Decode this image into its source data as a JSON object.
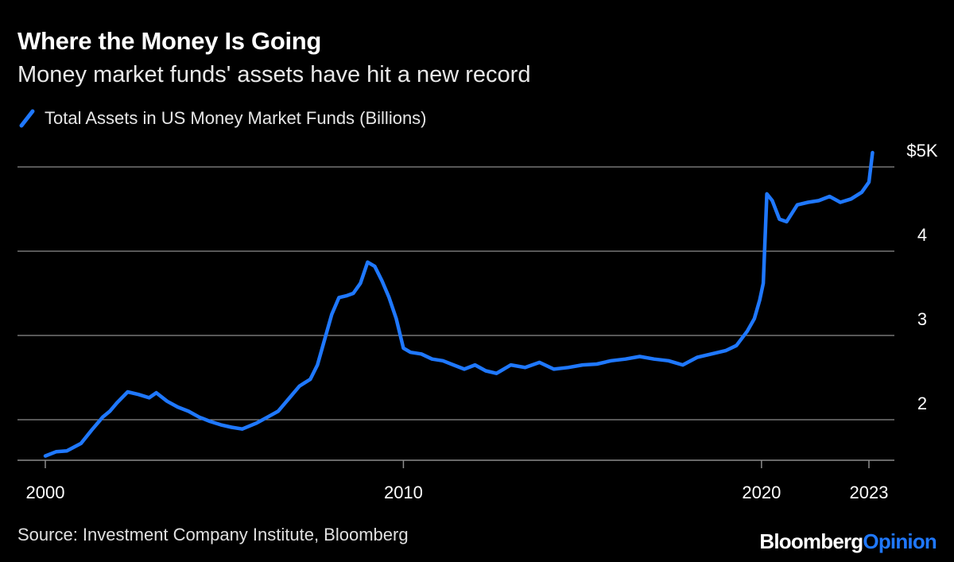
{
  "header": {
    "title": "Where the Money Is Going",
    "subtitle": "Money market funds' assets have hit a new record"
  },
  "colors": {
    "background": "#000000",
    "series": "#1f78ff",
    "gridline": "#8c8c8c",
    "text": "#ffffff"
  },
  "footer": {
    "source": "Source: Investment Company Institute, Bloomberg",
    "brand_primary": "Bloomberg",
    "brand_secondary": "Opinion"
  },
  "chart_data": {
    "type": "line",
    "title": "Where the Money Is Going",
    "subtitle": "Money market funds' assets have hit a new record",
    "xlabel": "",
    "ylabel": "",
    "x_range": [
      2000,
      2023
    ],
    "ylim": [
      1.5,
      5.2
    ],
    "grid": true,
    "legend": "top-left",
    "y_ticks": [
      {
        "value": 5,
        "label": "$5K"
      },
      {
        "value": 4,
        "label": "4"
      },
      {
        "value": 3,
        "label": "3"
      },
      {
        "value": 2,
        "label": "2"
      }
    ],
    "x_ticks": [
      {
        "value": 2000,
        "label": "2000"
      },
      {
        "value": 2010,
        "label": "2010"
      },
      {
        "value": 2020,
        "label": "2020"
      },
      {
        "value": 2023,
        "label": "2023"
      }
    ],
    "series": [
      {
        "name": "Total Assets in US Money Market Funds (Billions)",
        "x": [
          2000.0,
          2000.3,
          2000.6,
          2001.0,
          2001.3,
          2001.6,
          2001.8,
          2002.0,
          2002.3,
          2002.6,
          2002.9,
          2003.1,
          2003.4,
          2003.7,
          2004.0,
          2004.3,
          2004.6,
          2004.9,
          2005.2,
          2005.5,
          2005.9,
          2006.2,
          2006.5,
          2006.8,
          2007.1,
          2007.4,
          2007.6,
          2007.8,
          2008.0,
          2008.2,
          2008.4,
          2008.6,
          2008.8,
          2009.0,
          2009.2,
          2009.4,
          2009.6,
          2009.8,
          2010.0,
          2010.2,
          2010.5,
          2010.8,
          2011.1,
          2011.4,
          2011.7,
          2012.0,
          2012.3,
          2012.6,
          2013.0,
          2013.4,
          2013.8,
          2014.2,
          2014.6,
          2015.0,
          2015.4,
          2015.8,
          2016.2,
          2016.6,
          2017.0,
          2017.4,
          2017.8,
          2018.2,
          2018.6,
          2019.0,
          2019.3,
          2019.6,
          2019.8,
          2019.95,
          2020.05,
          2020.15,
          2020.3,
          2020.5,
          2020.7,
          2021.0,
          2021.3,
          2021.6,
          2021.9,
          2022.2,
          2022.5,
          2022.8,
          2023.0,
          2023.1
        ],
        "values": [
          1.57,
          1.62,
          1.63,
          1.72,
          1.88,
          2.03,
          2.1,
          2.2,
          2.33,
          2.3,
          2.26,
          2.32,
          2.22,
          2.15,
          2.1,
          2.03,
          1.98,
          1.94,
          1.91,
          1.89,
          1.96,
          2.03,
          2.1,
          2.25,
          2.4,
          2.48,
          2.65,
          2.95,
          3.25,
          3.45,
          3.47,
          3.5,
          3.62,
          3.87,
          3.82,
          3.65,
          3.45,
          3.2,
          2.85,
          2.8,
          2.78,
          2.72,
          2.7,
          2.65,
          2.6,
          2.65,
          2.58,
          2.55,
          2.65,
          2.62,
          2.68,
          2.6,
          2.62,
          2.65,
          2.66,
          2.7,
          2.72,
          2.75,
          2.72,
          2.7,
          2.65,
          2.74,
          2.78,
          2.82,
          2.88,
          3.05,
          3.2,
          3.42,
          3.62,
          4.68,
          4.6,
          4.38,
          4.35,
          4.55,
          4.58,
          4.6,
          4.65,
          4.58,
          4.62,
          4.7,
          4.82,
          5.17
        ]
      }
    ]
  }
}
